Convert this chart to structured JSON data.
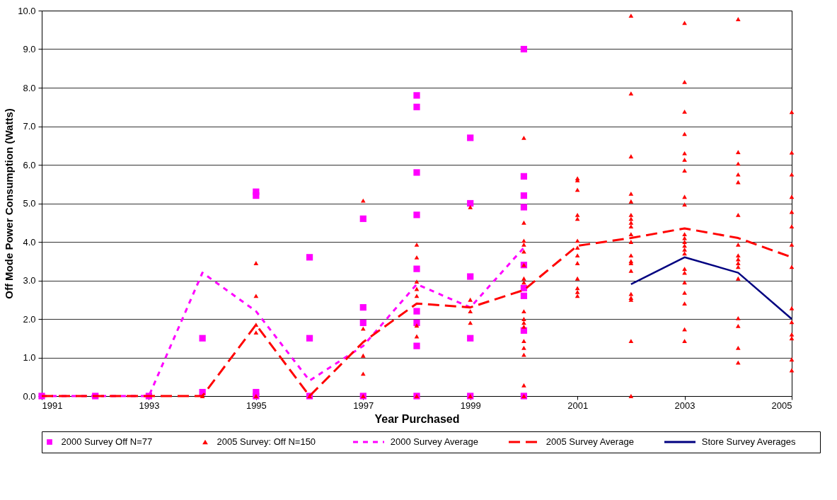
{
  "chart_data": {
    "type": "scatter",
    "xlabel": "Year Purchased",
    "ylabel": "Off Mode Power Consumption (Watts)",
    "xlim": [
      1991,
      2005
    ],
    "xticks": [
      1991,
      1993,
      1995,
      1997,
      1999,
      2001,
      2003,
      2005
    ],
    "ylim": [
      0,
      10
    ],
    "yticks": [
      {
        "value": 0,
        "label": "0.0"
      },
      {
        "value": 1,
        "label": "1.0"
      },
      {
        "value": 2,
        "label": "2.0"
      },
      {
        "value": 3,
        "label": "3.0"
      },
      {
        "value": 4,
        "label": "4.0"
      },
      {
        "value": 5,
        "label": "5.0"
      },
      {
        "value": 6,
        "label": "6.0"
      },
      {
        "value": 7,
        "label": "7.0"
      },
      {
        "value": 8,
        "label": "8.0"
      },
      {
        "value": 9,
        "label": "9.0"
      },
      {
        "value": 10,
        "label": "10.0"
      }
    ],
    "grid": "y",
    "legend": "bottom",
    "series": [
      {
        "name": "2000 Survey Off N=77",
        "marker": "square",
        "color": "#ff00ff",
        "x": [
          1991,
          1992,
          1993,
          1994,
          1994,
          1995,
          1995,
          1995,
          1995,
          1996,
          1996,
          1996,
          1997,
          1997,
          1997,
          1997,
          1998,
          1998,
          1998,
          1998,
          1998,
          1998,
          1998,
          1998,
          1998,
          1999,
          1999,
          1999,
          1999,
          1999,
          2000,
          2000,
          2000,
          2000,
          2000,
          2000,
          2000,
          2000,
          2000
        ],
        "values": [
          0,
          0,
          0,
          1.5,
          0.1,
          5.3,
          5.2,
          0.1,
          0,
          3.6,
          1.5,
          0,
          4.6,
          2.3,
          1.9,
          0,
          7.8,
          7.5,
          5.8,
          4.7,
          3.3,
          2.2,
          1.9,
          1.3,
          0,
          6.7,
          5.0,
          3.1,
          1.5,
          0,
          9.0,
          5.7,
          5.2,
          4.9,
          3.4,
          2.8,
          2.6,
          1.7,
          0
        ]
      },
      {
        "name": "2005 Survey: Off  N=150",
        "marker": "triangle",
        "color": "#ff0000",
        "x": [
          1994,
          1995,
          1995,
          1995,
          1995,
          1995,
          1996,
          1997,
          1997,
          1997,
          1997,
          1997,
          1998,
          1998,
          1998,
          1998,
          1998,
          1998,
          1998,
          1998,
          1999,
          1999,
          1999,
          1999,
          1999,
          2000,
          2000,
          2000,
          2000,
          2000,
          2000,
          2000,
          2000,
          2000,
          2000,
          2000,
          2000,
          2000,
          2000,
          2000,
          2000,
          2000,
          2001,
          2001,
          2001,
          2001,
          2001,
          2001,
          2001,
          2001,
          2001,
          2001,
          2001,
          2001,
          2001,
          2002,
          2002,
          2002,
          2002,
          2002,
          2002,
          2002,
          2002,
          2002,
          2002,
          2002,
          2002,
          2002,
          2002,
          2002,
          2002,
          2002,
          2002,
          2002,
          2002,
          2003,
          2003,
          2003,
          2003,
          2003,
          2003,
          2003,
          2003,
          2003,
          2003,
          2003,
          2003,
          2003,
          2003,
          2003,
          2003,
          2003,
          2003,
          2003,
          2003,
          2003,
          2003,
          2004,
          2004,
          2004,
          2004,
          2004,
          2004,
          2004,
          2004,
          2004,
          2004,
          2004,
          2004,
          2004,
          2004,
          2004,
          2004,
          2005,
          2005,
          2005,
          2005,
          2005,
          2005,
          2005,
          2005,
          2005,
          2005,
          2005,
          2005,
          2005,
          2005
        ],
        "values": [
          0,
          3.45,
          2.6,
          1.85,
          1.65,
          0,
          0,
          5.07,
          1.75,
          1.05,
          0.58,
          0,
          3.93,
          3.6,
          2.97,
          2.78,
          2.6,
          1.83,
          1.55,
          0,
          4.9,
          2.5,
          2.2,
          1.9,
          0,
          6.7,
          4.5,
          4.03,
          3.93,
          3.75,
          3.4,
          3.05,
          2.95,
          2.2,
          2.0,
          1.9,
          1.8,
          1.43,
          1.25,
          1.07,
          0.28,
          0,
          5.65,
          5.6,
          5.35,
          4.7,
          4.6,
          4.03,
          3.85,
          3.65,
          3.45,
          3.05,
          2.8,
          2.7,
          2.6,
          9.87,
          7.85,
          6.22,
          5.25,
          5.05,
          4.7,
          4.6,
          4.5,
          4.4,
          4.2,
          4.0,
          3.65,
          3.5,
          3.45,
          3.25,
          2.65,
          2.55,
          2.5,
          1.43,
          0,
          9.68,
          8.15,
          7.38,
          6.8,
          6.3,
          6.13,
          5.85,
          5.17,
          4.97,
          4.2,
          4.1,
          4.0,
          3.9,
          3.8,
          3.7,
          3.3,
          3.2,
          2.95,
          2.68,
          2.4,
          1.73,
          1.43,
          9.78,
          6.33,
          6.03,
          5.75,
          5.55,
          4.7,
          3.93,
          3.65,
          3.55,
          3.45,
          3.35,
          3.05,
          2.02,
          1.82,
          1.25,
          0.87,
          7.37,
          6.32,
          5.75,
          5.17,
          4.78,
          4.4,
          3.93,
          3.35,
          2.28,
          1.92,
          1.6,
          1.5,
          0.95,
          0.67
        ]
      },
      {
        "name": "2000 Survey Average",
        "type": "line",
        "line_style": "dotted",
        "color": "#ff00ff",
        "x": [
          1991,
          1992,
          1993,
          1994,
          1995,
          1996,
          1997,
          1998,
          1999,
          2000
        ],
        "values": [
          0,
          0,
          0,
          3.2,
          2.2,
          0.4,
          1.3,
          2.9,
          2.3,
          3.85
        ]
      },
      {
        "name": "2005 Survey Average",
        "type": "line",
        "line_style": "dashed",
        "color": "#ff0000",
        "x": [
          1991,
          1992,
          1993,
          1994,
          1995,
          1996,
          1997,
          1998,
          1999,
          2000,
          2001,
          2002,
          2003,
          2004,
          2005
        ],
        "values": [
          0,
          0,
          0,
          0,
          1.85,
          0,
          1.4,
          2.4,
          2.3,
          2.75,
          3.9,
          4.1,
          4.35,
          4.1,
          3.6
        ]
      },
      {
        "name": "Store Survey Averages",
        "type": "line",
        "line_style": "solid",
        "color": "#000080",
        "x": [
          2002,
          2003,
          2004,
          2005
        ],
        "values": [
          2.9,
          3.6,
          3.2,
          2.0
        ]
      }
    ]
  }
}
